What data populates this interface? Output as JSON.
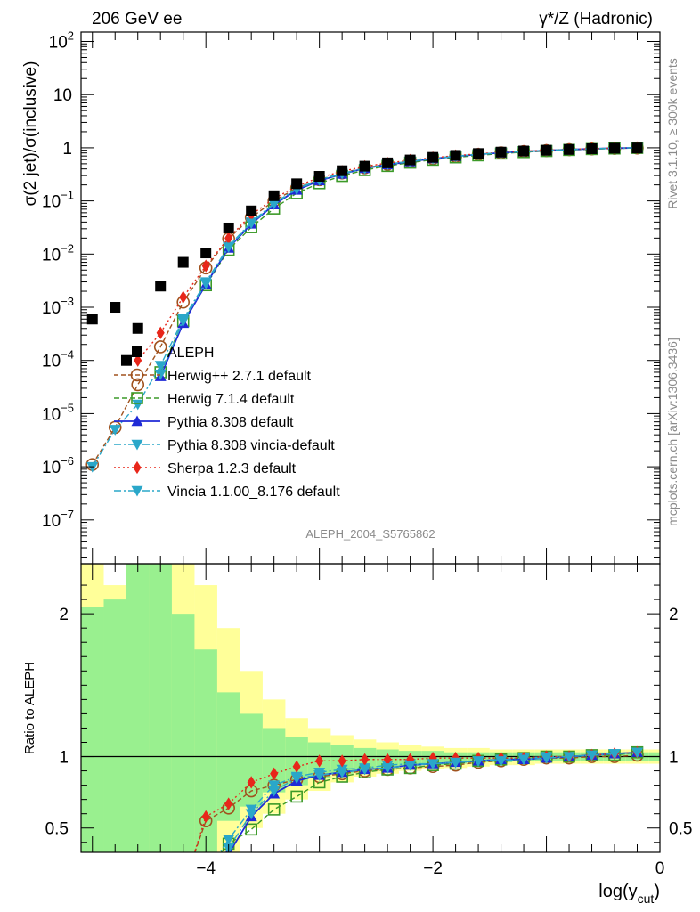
{
  "header": {
    "left": "206 GeV ee",
    "right": "γ*/Z (Hadronic)"
  },
  "side": {
    "rivet": "Rivet 3.1.10, ≥ 300k events",
    "mcplots": "mcplots.cern.ch [arXiv:1306.3436]"
  },
  "chart_data": {
    "type": "scatter",
    "analysis_label": "ALEPH_2004_S5765862",
    "main": {
      "ylabel": "σ(2 jet)/σ(inclusive)",
      "yscale": "log",
      "ylim": [
        1.5e-08,
        150
      ],
      "yticks": [
        {
          "v": 1e-07,
          "b": "10",
          "e": "−7"
        },
        {
          "v": 1e-06,
          "b": "10",
          "e": "−6"
        },
        {
          "v": 1e-05,
          "b": "10",
          "e": "−5"
        },
        {
          "v": 0.0001,
          "b": "10",
          "e": "−4"
        },
        {
          "v": 0.001,
          "b": "10",
          "e": "−3"
        },
        {
          "v": 0.01,
          "b": "10",
          "e": "−2"
        },
        {
          "v": 0.1,
          "b": "10",
          "e": "−1"
        },
        {
          "v": 1,
          "b": "1",
          "e": ""
        },
        {
          "v": 10,
          "b": "10",
          "e": ""
        },
        {
          "v": 100,
          "b": "10",
          "e": "2"
        }
      ]
    },
    "ratio": {
      "ylabel": "Ratio to ALEPH",
      "ylim": [
        0.33,
        2.35
      ],
      "yticks": [
        {
          "v": 0.5,
          "label": "0.5"
        },
        {
          "v": 1,
          "label": "1"
        },
        {
          "v": 2,
          "label": "2"
        }
      ]
    },
    "x": {
      "label": "log(y",
      "label_sub": "cut",
      "label_close": ")",
      "xlim": [
        -5.1,
        0
      ],
      "ticks": [
        {
          "v": -4,
          "label": "−4"
        },
        {
          "v": -2,
          "label": "−2"
        },
        {
          "v": 0,
          "label": "0"
        }
      ]
    },
    "bands": [
      {
        "x0": -5.1,
        "x1": -4.9,
        "g": [
          0.33,
          2.05
        ],
        "y": [
          0.33,
          2.35
        ]
      },
      {
        "x0": -4.9,
        "x1": -4.7,
        "g": [
          0.33,
          2.1
        ],
        "y": [
          0.33,
          2.2
        ]
      },
      {
        "x0": -4.7,
        "x1": -4.5,
        "g": [
          0.33,
          2.35
        ],
        "y": [
          0.33,
          2.35
        ]
      },
      {
        "x0": -4.5,
        "x1": -4.3,
        "g": [
          0.33,
          2.35
        ],
        "y": [
          0.33,
          2.35
        ]
      },
      {
        "x0": -4.3,
        "x1": -4.1,
        "g": [
          0.33,
          2.0
        ],
        "y": [
          0.33,
          2.35
        ]
      },
      {
        "x0": -4.1,
        "x1": -3.9,
        "g": [
          0.33,
          1.75
        ],
        "y": [
          0.33,
          2.2
        ]
      },
      {
        "x0": -3.9,
        "x1": -3.7,
        "g": [
          0.55,
          1.45
        ],
        "y": [
          0.33,
          1.9
        ]
      },
      {
        "x0": -3.7,
        "x1": -3.5,
        "g": [
          0.65,
          1.3
        ],
        "y": [
          0.5,
          1.6
        ]
      },
      {
        "x0": -3.5,
        "x1": -3.3,
        "g": [
          0.75,
          1.2
        ],
        "y": [
          0.6,
          1.4
        ]
      },
      {
        "x0": -3.3,
        "x1": -3.1,
        "g": [
          0.8,
          1.14
        ],
        "y": [
          0.7,
          1.27
        ]
      },
      {
        "x0": -3.1,
        "x1": -2.9,
        "g": [
          0.85,
          1.1
        ],
        "y": [
          0.76,
          1.2
        ]
      },
      {
        "x0": -2.9,
        "x1": -2.7,
        "g": [
          0.88,
          1.08
        ],
        "y": [
          0.82,
          1.15
        ]
      },
      {
        "x0": -2.7,
        "x1": -2.5,
        "g": [
          0.9,
          1.06
        ],
        "y": [
          0.86,
          1.12
        ]
      },
      {
        "x0": -2.5,
        "x1": -2.3,
        "g": [
          0.92,
          1.05
        ],
        "y": [
          0.88,
          1.1
        ]
      },
      {
        "x0": -2.3,
        "x1": -2.1,
        "g": [
          0.93,
          1.04
        ],
        "y": [
          0.9,
          1.08
        ]
      },
      {
        "x0": -2.1,
        "x1": -1.9,
        "g": [
          0.94,
          1.04
        ],
        "y": [
          0.91,
          1.07
        ]
      },
      {
        "x0": -1.9,
        "x1": -1.7,
        "g": [
          0.95,
          1.03
        ],
        "y": [
          0.92,
          1.06
        ]
      },
      {
        "x0": -1.7,
        "x1": -1.5,
        "g": [
          0.96,
          1.03
        ],
        "y": [
          0.93,
          1.06
        ]
      },
      {
        "x0": -1.5,
        "x1": -1.3,
        "g": [
          0.96,
          1.03
        ],
        "y": [
          0.94,
          1.05
        ]
      },
      {
        "x0": -1.3,
        "x1": -1.1,
        "g": [
          0.97,
          1.03
        ],
        "y": [
          0.94,
          1.05
        ]
      },
      {
        "x0": -1.1,
        "x1": -0.9,
        "g": [
          0.97,
          1.03
        ],
        "y": [
          0.95,
          1.05
        ]
      },
      {
        "x0": -0.9,
        "x1": -0.7,
        "g": [
          0.97,
          1.03
        ],
        "y": [
          0.95,
          1.05
        ]
      },
      {
        "x0": -0.7,
        "x1": -0.5,
        "g": [
          0.97,
          1.03
        ],
        "y": [
          0.95,
          1.05
        ]
      },
      {
        "x0": -0.5,
        "x1": -0.3,
        "g": [
          0.97,
          1.03
        ],
        "y": [
          0.95,
          1.05
        ]
      },
      {
        "x0": -0.3,
        "x1": -0.1,
        "g": [
          0.97,
          1.03
        ],
        "y": [
          0.95,
          1.05
        ]
      },
      {
        "x0": -0.1,
        "x1": 0.0,
        "g": [
          0.97,
          1.03
        ],
        "y": [
          0.95,
          1.05
        ]
      }
    ],
    "data": {
      "name": "ALEPH",
      "color": "#000000",
      "points": [
        [
          -5.0,
          0.0006
        ],
        [
          -4.8,
          0.001
        ],
        [
          -4.6,
          0.0004
        ],
        [
          -4.4,
          0.0025
        ],
        [
          -4.2,
          0.007
        ],
        [
          -4.0,
          0.0105
        ],
        [
          -3.8,
          0.031
        ],
        [
          -3.6,
          0.065
        ],
        [
          -3.4,
          0.125
        ],
        [
          -3.2,
          0.21
        ],
        [
          -3.0,
          0.29
        ],
        [
          -2.8,
          0.37
        ],
        [
          -2.6,
          0.45
        ],
        [
          -2.4,
          0.52
        ],
        [
          -2.2,
          0.59
        ],
        [
          -2.0,
          0.66
        ],
        [
          -1.8,
          0.72
        ],
        [
          -1.6,
          0.78
        ],
        [
          -1.4,
          0.83
        ],
        [
          -1.2,
          0.87
        ],
        [
          -1.0,
          0.9
        ],
        [
          -0.8,
          0.93
        ],
        [
          -0.6,
          0.96
        ],
        [
          -0.4,
          0.98
        ],
        [
          -0.2,
          0.99
        ]
      ],
      "lowpoint_x": -4.7,
      "lowpoint_y": 0.0001
    },
    "series": [
      {
        "name": "Herwig++ 2.7.1 default",
        "color": "#a0521e",
        "marker": "circle-open",
        "dash": "5,3",
        "x": [
          -5.0,
          -4.8,
          -4.6,
          -4.4,
          -4.2,
          -4.0,
          -3.8,
          -3.6,
          -3.4,
          -3.2,
          -3.0,
          -2.8,
          -2.6,
          -2.4,
          -2.2,
          -2.0,
          -1.8,
          -1.6,
          -1.4,
          -1.2,
          -1.0,
          -0.8,
          -0.6,
          -0.4,
          -0.2
        ],
        "y": [
          1.1e-06,
          5.5e-06,
          3.5e-05,
          0.00018,
          0.00125,
          0.0055,
          0.0195,
          0.049,
          0.1,
          0.175,
          0.25,
          0.335,
          0.42,
          0.49,
          0.555,
          0.625,
          0.685,
          0.75,
          0.805,
          0.85,
          0.885,
          0.92,
          0.95,
          0.975,
          0.99
        ],
        "ratio": [
          null,
          null,
          null,
          null,
          null,
          0.55,
          0.64,
          0.76,
          0.8,
          0.84,
          0.86,
          0.88,
          0.9,
          0.91,
          0.92,
          0.93,
          0.94,
          0.96,
          0.97,
          0.98,
          0.99,
          0.99,
          1.0,
          1.0,
          1.01
        ]
      },
      {
        "name": "Herwig 7.1.4 default",
        "color": "#3c9a28",
        "marker": "square-open",
        "dash": "6,3",
        "x": [
          -4.4,
          -4.2,
          -4.0,
          -3.8,
          -3.6,
          -3.4,
          -3.2,
          -3.0,
          -2.8,
          -2.6,
          -2.4,
          -2.2,
          -2.0,
          -1.8,
          -1.6,
          -1.4,
          -1.2,
          -1.0,
          -0.8,
          -0.6,
          -0.4,
          -0.2
        ],
        "y": [
          6e-05,
          0.00055,
          0.0026,
          0.012,
          0.032,
          0.072,
          0.14,
          0.215,
          0.295,
          0.38,
          0.455,
          0.525,
          0.595,
          0.66,
          0.72,
          0.78,
          0.83,
          0.87,
          0.91,
          0.945,
          0.97,
          0.995
        ],
        "ratio": [
          null,
          null,
          null,
          0.39,
          0.49,
          0.63,
          0.72,
          0.82,
          0.86,
          0.89,
          0.91,
          0.92,
          0.94,
          0.95,
          0.97,
          0.98,
          0.99,
          1.0,
          1.0,
          1.01,
          1.01,
          1.03
        ]
      },
      {
        "name": "Pythia 8.308 default",
        "color": "#1f2ad6",
        "marker": "triangle-up",
        "dash": "",
        "x": [
          -4.4,
          -4.2,
          -4.0,
          -3.8,
          -3.6,
          -3.4,
          -3.2,
          -3.0,
          -2.8,
          -2.6,
          -2.4,
          -2.2,
          -2.0,
          -1.8,
          -1.6,
          -1.4,
          -1.2,
          -1.0,
          -0.8,
          -0.6,
          -0.4,
          -0.2
        ],
        "y": [
          5e-05,
          0.0005,
          0.0027,
          0.013,
          0.037,
          0.085,
          0.16,
          0.24,
          0.32,
          0.41,
          0.48,
          0.55,
          0.625,
          0.69,
          0.75,
          0.805,
          0.85,
          0.89,
          0.925,
          0.96,
          0.985,
          1.0
        ],
        "ratio": [
          null,
          null,
          null,
          0.32,
          0.58,
          0.74,
          0.83,
          0.87,
          0.89,
          0.91,
          0.92,
          0.94,
          0.95,
          0.96,
          0.97,
          0.98,
          0.98,
          0.99,
          1.0,
          1.01,
          1.02,
          1.03
        ]
      },
      {
        "name": "Pythia 8.308 vincia-default",
        "color": "#2aa7c9",
        "marker": "triangle-down",
        "dash": "8,3,2,3",
        "x": [
          -5.0,
          -4.8,
          -4.6,
          -4.4,
          -4.2,
          -4.0,
          -3.8,
          -3.6,
          -3.4,
          -3.2,
          -3.0,
          -2.8,
          -2.6,
          -2.4,
          -2.2,
          -2.0,
          -1.8,
          -1.6,
          -1.4,
          -1.2,
          -1.0,
          -0.8,
          -0.6,
          -0.4,
          -0.2
        ],
        "y": [
          1e-06,
          5e-06,
          1.5e-05,
          8e-05,
          0.0006,
          0.003,
          0.014,
          0.04,
          0.09,
          0.17,
          0.25,
          0.33,
          0.41,
          0.49,
          0.56,
          0.63,
          0.695,
          0.755,
          0.81,
          0.855,
          0.895,
          0.93,
          0.96,
          0.985,
          1.0
        ],
        "ratio": [
          null,
          null,
          null,
          null,
          null,
          null,
          0.42,
          0.63,
          0.8,
          0.86,
          0.89,
          0.91,
          0.92,
          0.94,
          0.95,
          0.95,
          0.96,
          0.97,
          0.98,
          0.99,
          1.0,
          1.0,
          1.01,
          1.02,
          1.03
        ]
      },
      {
        "name": "Sherpa 1.2.3 default",
        "color": "#e8261a",
        "marker": "diamond",
        "dash": "2,3",
        "x": [
          -4.6,
          -4.4,
          -4.2,
          -4.0,
          -3.8,
          -3.6,
          -3.4,
          -3.2,
          -3.0,
          -2.8,
          -2.6,
          -2.4,
          -2.2,
          -2.0,
          -1.8,
          -1.6,
          -1.4,
          -1.2,
          -1.0,
          -0.8,
          -0.6,
          -0.4,
          -0.2
        ],
        "y": [
          0.0001,
          0.00033,
          0.00155,
          0.006,
          0.02,
          0.055,
          0.11,
          0.19,
          0.275,
          0.36,
          0.445,
          0.515,
          0.585,
          0.65,
          0.71,
          0.77,
          0.82,
          0.865,
          0.9,
          0.935,
          0.965,
          0.985,
          1.0
        ],
        "ratio": [
          null,
          null,
          null,
          0.58,
          0.67,
          0.82,
          0.88,
          0.93,
          0.97,
          0.97,
          0.98,
          0.98,
          0.98,
          0.99,
          0.99,
          0.99,
          0.99,
          0.99,
          1.0,
          1.0,
          1.01,
          1.02,
          1.03
        ]
      },
      {
        "name": "Vincia 1.1.00_8.176 default",
        "color": "#2aa7c9",
        "marker": "triangle-down",
        "dash": "8,3,2,3",
        "x": [
          -4.4,
          -4.2,
          -4.0,
          -3.8,
          -3.6,
          -3.4,
          -3.2,
          -3.0,
          -2.8,
          -2.6,
          -2.4,
          -2.2,
          -2.0,
          -1.8,
          -1.6,
          -1.4,
          -1.2,
          -1.0,
          -0.8,
          -0.6,
          -0.4,
          -0.2
        ],
        "y": [
          5.5e-05,
          0.00055,
          0.0028,
          0.0135,
          0.038,
          0.088,
          0.165,
          0.245,
          0.325,
          0.405,
          0.485,
          0.555,
          0.625,
          0.69,
          0.75,
          0.805,
          0.85,
          0.89,
          0.925,
          0.96,
          0.985,
          1.0
        ],
        "ratio": [
          null,
          null,
          null,
          0.36,
          0.6,
          0.76,
          0.85,
          0.87,
          0.89,
          0.91,
          0.92,
          0.94,
          0.95,
          0.96,
          0.97,
          0.97,
          0.98,
          0.99,
          1.0,
          1.01,
          1.02,
          1.03
        ]
      }
    ]
  }
}
